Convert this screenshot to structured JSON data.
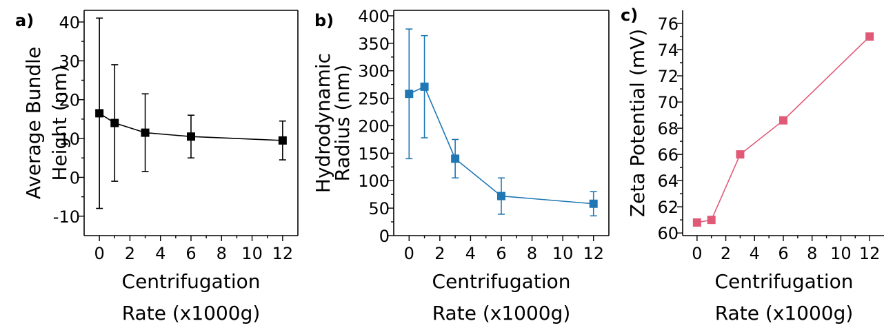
{
  "chart_data": [
    {
      "panel_label": "a)",
      "type": "line",
      "xlabel": [
        "Centrifugation",
        "Rate (x1000g)"
      ],
      "ylabel": [
        "Average Bundle",
        "Height (nm)"
      ],
      "xticks": [
        "0",
        "2",
        "4",
        "6",
        "8",
        "10",
        "12"
      ],
      "yticks": [
        "-10",
        "0",
        "10",
        "20",
        "30",
        "40"
      ],
      "xlim": [
        -1,
        13
      ],
      "ylim": [
        -15,
        43
      ],
      "color": "#000000",
      "marker": "square",
      "series": [
        {
          "x": [
            0,
            1,
            3,
            6,
            12
          ],
          "y": [
            16.5,
            14,
            11.5,
            10.5,
            9.5
          ],
          "error": [
            24.5,
            15,
            10,
            5.5,
            5
          ]
        }
      ]
    },
    {
      "panel_label": "b)",
      "type": "line",
      "xlabel": [
        "Centrifugation",
        "Rate (x1000g)"
      ],
      "ylabel": [
        "Hydrodynamic",
        "Radius (nm)"
      ],
      "xticks": [
        "0",
        "2",
        "4",
        "6",
        "8",
        "10",
        "12"
      ],
      "yticks": [
        "0",
        "50",
        "100",
        "150",
        "200",
        "250",
        "300",
        "350",
        "400"
      ],
      "xlim": [
        -1,
        13
      ],
      "ylim": [
        0,
        410
      ],
      "color": "#1f77b4",
      "marker": "square",
      "series": [
        {
          "x": [
            0,
            1,
            3,
            6,
            12
          ],
          "y": [
            258,
            271,
            140,
            72,
            58
          ],
          "error": [
            118,
            93,
            35,
            33,
            22
          ]
        }
      ]
    },
    {
      "panel_label": "c)",
      "type": "line",
      "xlabel": [
        "Centrifugation",
        "Rate (x1000g)"
      ],
      "ylabel": [
        "Zeta Potential (mV)"
      ],
      "xticks": [
        "0",
        "2",
        "4",
        "6",
        "8",
        "10",
        "12"
      ],
      "yticks": [
        "60",
        "62",
        "64",
        "66",
        "68",
        "70",
        "72",
        "74",
        "76"
      ],
      "xlim": [
        -1,
        13
      ],
      "ylim": [
        59.8,
        77
      ],
      "color": "#e05a78",
      "marker": "square",
      "series": [
        {
          "x": [
            0,
            1,
            3,
            6,
            12
          ],
          "y": [
            60.8,
            61,
            66,
            68.6,
            75
          ]
        }
      ]
    }
  ]
}
